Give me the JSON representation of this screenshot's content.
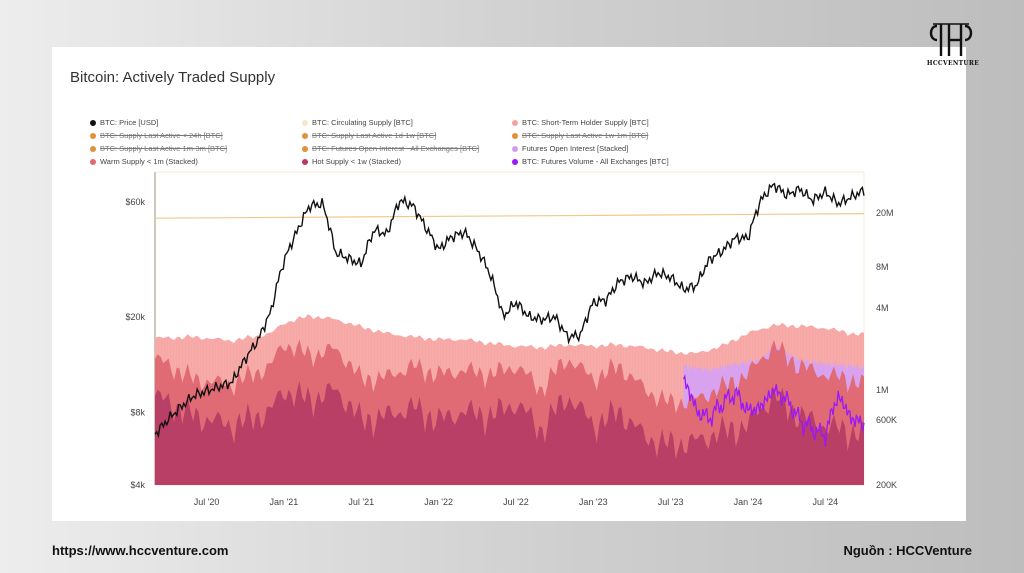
{
  "title": "Bitcoin: Actively Traded Supply",
  "brand": {
    "logo_text": "HCCVENTURE"
  },
  "footer": {
    "url": "https://www.hccventure.com",
    "source": "Nguồn : HCCVenture"
  },
  "legend": [
    {
      "label": "BTC: Price [USD]",
      "color": "#111111",
      "struck": false
    },
    {
      "label": "BTC: Circulating Supply [BTC]",
      "color": "#f8e6c8",
      "struck": false
    },
    {
      "label": "BTC: Short-Term Holder Supply [BTC]",
      "color": "#f4a3a3",
      "struck": false
    },
    {
      "label": "BTC: Supply Last Active < 24h [BTC]",
      "color": "#e0913a",
      "struck": true
    },
    {
      "label": "BTC: Supply Last Active 1d-1w [BTC]",
      "color": "#e0913a",
      "struck": true
    },
    {
      "label": "BTC: Supply Last Active 1w-1m [BTC]",
      "color": "#e0913a",
      "struck": true
    },
    {
      "label": "BTC: Supply Last Active 1m-3m [BTC]",
      "color": "#e0913a",
      "struck": true
    },
    {
      "label": "BTC: Futures Open Interest - All Exchanges [BTC]",
      "color": "#e0913a",
      "struck": true
    },
    {
      "label": "Futures Open Interest [Stacked]",
      "color": "#d59bf0",
      "struck": false
    },
    {
      "label": "Warm Supply < 1m (Stacked)",
      "color": "#e06a74",
      "struck": false
    },
    {
      "label": "Hot Supply < 1w (Stacked)",
      "color": "#b83b63",
      "struck": false
    },
    {
      "label": "BTC: Futures Volume - All Exchanges [BTC]",
      "color": "#9b19f5",
      "struck": false
    }
  ],
  "chart_data": {
    "type": "area",
    "title": "Bitcoin: Actively Traded Supply",
    "x_ticks": [
      "Jul '20",
      "Jan '21",
      "Jul '21",
      "Jan '22",
      "Jul '22",
      "Jan '23",
      "Jul '23",
      "Jan '24",
      "Jul '24"
    ],
    "y_left": {
      "scale": "log",
      "ticks": [
        "$60k",
        "$20k",
        "$8k",
        "$4k"
      ],
      "tick_values": [
        60000,
        20000,
        8000,
        4000
      ],
      "range": [
        4000,
        80000
      ]
    },
    "y_right": {
      "scale": "log",
      "ticks": [
        "20M",
        "8M",
        "4M",
        "1M",
        "600K",
        "200K"
      ],
      "tick_values": [
        20000000,
        8000000,
        4000000,
        1000000,
        600000,
        200000
      ],
      "range": [
        200000,
        40000000
      ]
    },
    "x_range": [
      "2020-03",
      "2024-10"
    ],
    "grid": false,
    "legend_position": "top",
    "series": [
      {
        "name": "BTC: Price [USD]",
        "axis": "left",
        "color": "#111111",
        "x": [
          "2020-03",
          "2020-06",
          "2020-09",
          "2020-11",
          "2020-12",
          "2021-01",
          "2021-02",
          "2021-03",
          "2021-04",
          "2021-05",
          "2021-06",
          "2021-07",
          "2021-08",
          "2021-09",
          "2021-10",
          "2021-11",
          "2021-12",
          "2022-01",
          "2022-02",
          "2022-03",
          "2022-04",
          "2022-05",
          "2022-06",
          "2022-07",
          "2022-08",
          "2022-09",
          "2022-10",
          "2022-11",
          "2022-12",
          "2023-01",
          "2023-02",
          "2023-03",
          "2023-04",
          "2023-05",
          "2023-06",
          "2023-07",
          "2023-08",
          "2023-09",
          "2023-10",
          "2023-11",
          "2023-12",
          "2024-01",
          "2024-02",
          "2024-03",
          "2024-04",
          "2024-05",
          "2024-06",
          "2024-07",
          "2024-08",
          "2024-09",
          "2024-10"
        ],
        "values": [
          6500,
          9400,
          10700,
          16000,
          21000,
          34000,
          45000,
          58000,
          59000,
          37000,
          35000,
          33000,
          46000,
          44000,
          61000,
          58000,
          47000,
          38000,
          43000,
          45000,
          38000,
          30000,
          20000,
          23000,
          20000,
          19500,
          20000,
          16500,
          16800,
          23000,
          23500,
          28000,
          29500,
          27500,
          30500,
          29200,
          26000,
          27000,
          34500,
          37500,
          42500,
          42500,
          61000,
          71000,
          64000,
          68000,
          61000,
          66000,
          59000,
          63000,
          67000
        ]
      },
      {
        "name": "BTC: Circulating Supply [BTC]",
        "axis": "right",
        "color": "#f8e6c8",
        "x": [
          "2020-03",
          "2024-10"
        ],
        "values": [
          18300000,
          19760000
        ]
      },
      {
        "name": "BTC: Short-Term Holder Supply [BTC]",
        "axis": "right",
        "color": "#f4a3a3",
        "x": [
          "2020-03",
          "2020-06",
          "2020-09",
          "2020-12",
          "2021-01",
          "2021-03",
          "2021-05",
          "2021-07",
          "2021-09",
          "2021-11",
          "2022-01",
          "2022-03",
          "2022-05",
          "2022-07",
          "2022-09",
          "2022-11",
          "2023-01",
          "2023-03",
          "2023-05",
          "2023-07",
          "2023-09",
          "2023-11",
          "2024-01",
          "2024-03",
          "2024-05",
          "2024-07",
          "2024-09",
          "2024-10"
        ],
        "values": [
          2400000,
          2450000,
          2300000,
          2600000,
          3100000,
          3500000,
          3300000,
          2900000,
          2600000,
          2450000,
          2350000,
          2350000,
          2200000,
          2100000,
          2050000,
          2150000,
          2100000,
          2150000,
          2050000,
          1900000,
          1850000,
          2100000,
          2600000,
          3000000,
          2950000,
          2850000,
          2600000,
          2550000
        ]
      },
      {
        "name": "Futures Open Interest [Stacked]",
        "axis": "right",
        "color": "#d59bf0",
        "x": [
          "2023-08",
          "2023-10",
          "2023-12",
          "2024-02",
          "2024-03",
          "2024-05",
          "2024-07",
          "2024-09",
          "2024-10"
        ],
        "values": [
          1500000,
          1400000,
          1550000,
          1650000,
          2100000,
          1650000,
          1550000,
          1500000,
          1450000
        ]
      },
      {
        "name": "Warm Supply < 1m (Stacked)",
        "axis": "right",
        "color": "#e06a74",
        "x": [
          "2020-03",
          "2020-06",
          "2020-09",
          "2020-12",
          "2021-01",
          "2021-03",
          "2021-05",
          "2021-07",
          "2021-09",
          "2021-11",
          "2022-01",
          "2022-03",
          "2022-05",
          "2022-07",
          "2022-09",
          "2022-11",
          "2023-01",
          "2023-03",
          "2023-05",
          "2023-07",
          "2023-09",
          "2023-11",
          "2024-01",
          "2024-03",
          "2024-05",
          "2024-07",
          "2024-09",
          "2024-10"
        ],
        "values": [
          1700000,
          1200000,
          1100000,
          1500000,
          2200000,
          1800000,
          2000000,
          1200000,
          1250000,
          1500000,
          1300000,
          1400000,
          1300000,
          1500000,
          1000000,
          1700000,
          1200000,
          1500000,
          1000000,
          800000,
          850000,
          1050000,
          1300000,
          2100000,
          1500000,
          1300000,
          1200000,
          1100000
        ]
      },
      {
        "name": "Hot Supply < 1w (Stacked)",
        "axis": "right",
        "color": "#b83b63",
        "x": [
          "2020-03",
          "2020-06",
          "2020-09",
          "2020-12",
          "2021-01",
          "2021-03",
          "2021-05",
          "2021-07",
          "2021-09",
          "2021-11",
          "2022-01",
          "2022-03",
          "2022-05",
          "2022-07",
          "2022-09",
          "2022-11",
          "2023-01",
          "2023-03",
          "2023-05",
          "2023-07",
          "2023-09",
          "2023-11",
          "2024-01",
          "2024-03",
          "2024-05",
          "2024-07",
          "2024-09",
          "2024-10"
        ],
        "values": [
          900000,
          650000,
          550000,
          700000,
          1000000,
          850000,
          1000000,
          600000,
          650000,
          750000,
          600000,
          700000,
          650000,
          800000,
          500000,
          900000,
          550000,
          700000,
          450000,
          400000,
          420000,
          500000,
          550000,
          900000,
          650000,
          550000,
          500000,
          480000
        ]
      },
      {
        "name": "BTC: Futures Volume - All Exchanges [BTC]",
        "axis": "right",
        "color": "#9b19f5",
        "x": [
          "2023-08",
          "2023-09",
          "2023-10",
          "2023-11",
          "2023-12",
          "2024-01",
          "2024-02",
          "2024-03",
          "2024-04",
          "2024-05",
          "2024-06",
          "2024-07",
          "2024-08",
          "2024-09",
          "2024-10"
        ],
        "values": [
          1200000,
          700000,
          620000,
          800000,
          950000,
          700000,
          750000,
          1000000,
          850000,
          600000,
          520000,
          460000,
          900000,
          620000,
          560000
        ]
      }
    ]
  }
}
